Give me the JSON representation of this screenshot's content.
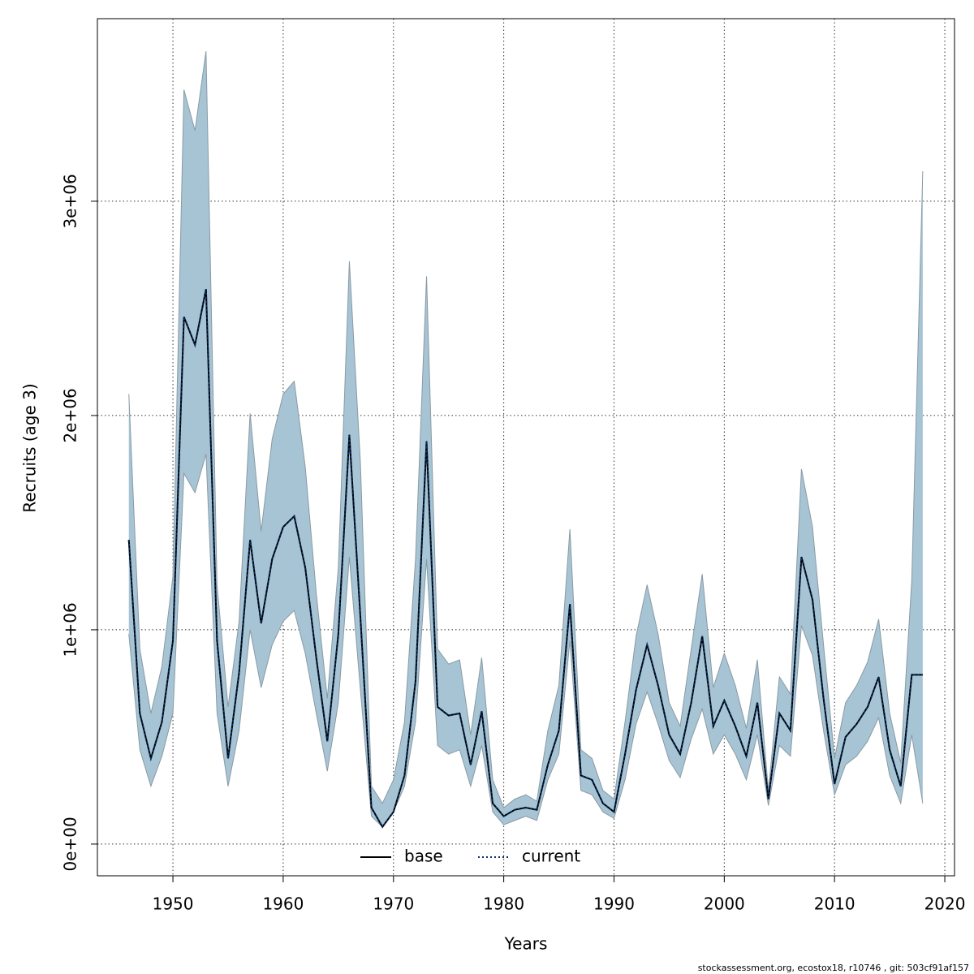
{
  "chart_data": {
    "type": "line",
    "xlabel": "Years",
    "ylabel": "Recruits (age 3)",
    "footer": "stockassessment.org, ecostox18, r10746 , git: 503cf91af157",
    "x": [
      1946,
      1947,
      1948,
      1949,
      1950,
      1951,
      1952,
      1953,
      1954,
      1955,
      1956,
      1957,
      1958,
      1959,
      1960,
      1961,
      1962,
      1963,
      1964,
      1965,
      1966,
      1967,
      1968,
      1969,
      1970,
      1971,
      1972,
      1973,
      1974,
      1975,
      1976,
      1977,
      1978,
      1979,
      1980,
      1981,
      1982,
      1983,
      1984,
      1985,
      1986,
      1987,
      1988,
      1989,
      1990,
      1991,
      1992,
      1993,
      1994,
      1995,
      1996,
      1997,
      1998,
      1999,
      2000,
      2001,
      2002,
      2003,
      2004,
      2005,
      2006,
      2007,
      2008,
      2009,
      2010,
      2011,
      2012,
      2013,
      2014,
      2015,
      2016,
      2017,
      2018
    ],
    "series": [
      {
        "name": "base",
        "color": "#000000",
        "dash": "solid",
        "values": [
          1420000,
          610000,
          400000,
          570000,
          950000,
          2460000,
          2330000,
          2590000,
          950000,
          400000,
          800000,
          1420000,
          1030000,
          1330000,
          1480000,
          1530000,
          1290000,
          870000,
          480000,
          980000,
          1910000,
          1060000,
          170000,
          80000,
          150000,
          320000,
          760000,
          1880000,
          640000,
          600000,
          610000,
          370000,
          620000,
          190000,
          130000,
          160000,
          170000,
          160000,
          370000,
          530000,
          1120000,
          320000,
          300000,
          190000,
          150000,
          420000,
          720000,
          930000,
          740000,
          510000,
          420000,
          660000,
          970000,
          550000,
          670000,
          550000,
          410000,
          660000,
          210000,
          610000,
          530000,
          1340000,
          1140000,
          680000,
          280000,
          500000,
          560000,
          640000,
          780000,
          440000,
          270000,
          790000,
          790000
        ]
      },
      {
        "name": "current",
        "color": "#08306b",
        "dash": "dotted",
        "values": [
          1420000,
          610000,
          400000,
          570000,
          950000,
          2460000,
          2330000,
          2590000,
          950000,
          400000,
          800000,
          1420000,
          1030000,
          1330000,
          1480000,
          1530000,
          1290000,
          870000,
          480000,
          980000,
          1910000,
          1060000,
          170000,
          80000,
          150000,
          320000,
          760000,
          1880000,
          640000,
          600000,
          610000,
          370000,
          620000,
          190000,
          130000,
          160000,
          170000,
          160000,
          370000,
          530000,
          1120000,
          320000,
          300000,
          190000,
          150000,
          420000,
          720000,
          930000,
          740000,
          510000,
          420000,
          660000,
          970000,
          550000,
          670000,
          550000,
          410000,
          660000,
          210000,
          610000,
          530000,
          1340000,
          1140000,
          680000,
          280000,
          500000,
          560000,
          640000,
          780000,
          440000,
          270000,
          790000,
          790000
        ]
      }
    ],
    "band": {
      "color": "#a6c4d4",
      "upper": [
        2100000,
        910000,
        610000,
        830000,
        1250000,
        3520000,
        3330000,
        3700000,
        1210000,
        640000,
        1040000,
        2010000,
        1460000,
        1890000,
        2100000,
        2160000,
        1760000,
        1170000,
        680000,
        1290000,
        2720000,
        1780000,
        270000,
        190000,
        300000,
        570000,
        1330000,
        2650000,
        910000,
        840000,
        860000,
        510000,
        870000,
        300000,
        170000,
        210000,
        230000,
        200000,
        530000,
        740000,
        1470000,
        440000,
        400000,
        250000,
        210000,
        570000,
        970000,
        1210000,
        980000,
        660000,
        550000,
        910000,
        1260000,
        730000,
        890000,
        740000,
        540000,
        860000,
        250000,
        780000,
        700000,
        1750000,
        1480000,
        930000,
        400000,
        660000,
        740000,
        850000,
        1050000,
        610000,
        380000,
        1230000,
        3140000
      ],
      "lower": [
        980000,
        440000,
        270000,
        410000,
        610000,
        1730000,
        1640000,
        1820000,
        610000,
        270000,
        530000,
        1000000,
        730000,
        930000,
        1040000,
        1090000,
        890000,
        610000,
        340000,
        660000,
        1340000,
        720000,
        130000,
        80000,
        150000,
        270000,
        570000,
        1330000,
        460000,
        420000,
        440000,
        270000,
        460000,
        150000,
        90000,
        110000,
        130000,
        110000,
        300000,
        420000,
        950000,
        250000,
        230000,
        150000,
        120000,
        300000,
        560000,
        710000,
        560000,
        390000,
        310000,
        490000,
        630000,
        420000,
        510000,
        420000,
        300000,
        510000,
        180000,
        460000,
        410000,
        1020000,
        880000,
        530000,
        230000,
        370000,
        410000,
        480000,
        590000,
        320000,
        190000,
        510000,
        190000
      ]
    },
    "xlim": [
      1943.15,
      2020.88
    ],
    "ylim": [
      -148000,
      3852000
    ],
    "xticks": [
      1950,
      1960,
      1970,
      1980,
      1990,
      2000,
      2010,
      2020
    ],
    "yticks": [
      {
        "value": 0,
        "label": "0e+00"
      },
      {
        "value": 1000000,
        "label": "1e+06"
      },
      {
        "value": 2000000,
        "label": "2e+06"
      },
      {
        "value": 3000000,
        "label": "3e+06"
      }
    ],
    "grid": true,
    "legend": "bottom"
  }
}
